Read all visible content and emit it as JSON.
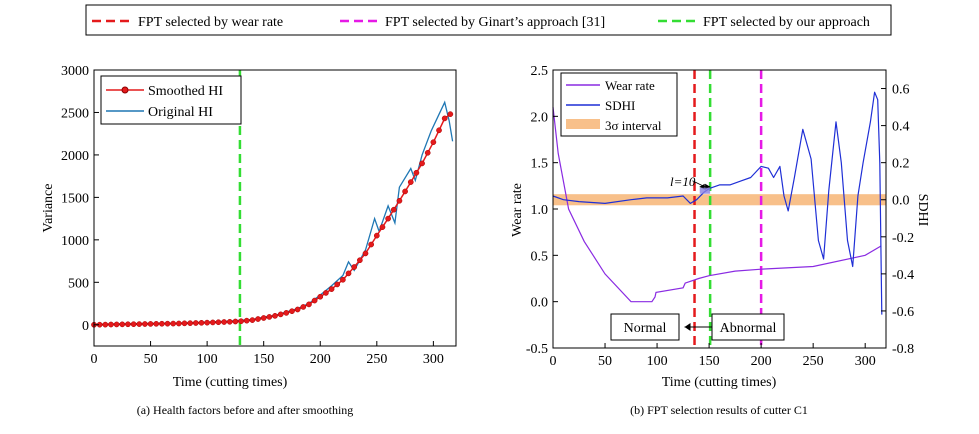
{
  "legend": {
    "wear_rate": "FPT selected by wear rate",
    "ginart": "FPT selected by Ginart’s approach [31]",
    "ours": "FPT selected by our approach"
  },
  "colors": {
    "red": "#e41a1c",
    "magenta": "#e619e6",
    "green": "#33dd33",
    "smoothed": "#e41a1c",
    "original": "#1f77b4",
    "wear": "#8a2be2",
    "sdhi": "#1f2fd6",
    "band": "#f8c08a"
  },
  "chart_data": [
    {
      "type": "line",
      "caption": "(a) Health factors before and after smoothing",
      "xlabel": "Time (cutting times)",
      "ylabel": "Variance",
      "xlim": [
        0,
        320
      ],
      "ylim": [
        -250,
        3000
      ],
      "xticks": [
        "0",
        "50",
        "100",
        "150",
        "200",
        "250",
        "300"
      ],
      "yticks": [
        "0",
        "500",
        "1000",
        "1500",
        "2000",
        "2500",
        "3000"
      ],
      "legend": [
        "Smoothed HI",
        "Original HI"
      ],
      "fpt_line_x": 129,
      "smoothed": {
        "name": "Smoothed HI",
        "x": [
          0,
          25,
          50,
          75,
          100,
          120,
          130,
          140,
          150,
          160,
          170,
          180,
          190,
          200,
          210,
          220,
          230,
          240,
          250,
          260,
          270,
          280,
          290,
          300,
          310,
          315
        ],
        "y": [
          0,
          5,
          10,
          15,
          25,
          35,
          42,
          55,
          80,
          105,
          140,
          180,
          240,
          330,
          420,
          530,
          680,
          840,
          1050,
          1250,
          1460,
          1680,
          1900,
          2150,
          2430,
          2480
        ]
      },
      "original": {
        "name": "Original HI",
        "x": [
          0,
          25,
          50,
          75,
          100,
          120,
          130,
          140,
          150,
          160,
          170,
          180,
          190,
          200,
          210,
          220,
          225,
          230,
          240,
          248,
          252,
          260,
          266,
          270,
          280,
          284,
          290,
          298,
          304,
          310,
          314,
          317
        ],
        "y": [
          5,
          12,
          16,
          20,
          32,
          42,
          55,
          62,
          90,
          110,
          150,
          190,
          250,
          350,
          460,
          580,
          740,
          640,
          880,
          1250,
          1100,
          1400,
          1200,
          1620,
          1840,
          1700,
          2000,
          2280,
          2450,
          2620,
          2400,
          2160
        ]
      }
    },
    {
      "type": "line",
      "caption": "(b) FPT selection results of cutter C1",
      "xlabel": "Time (cutting times)",
      "ylabel_left": "Wear rate",
      "ylabel_right": "SDHI",
      "xlim": [
        0,
        320
      ],
      "ylim_left": [
        -0.5,
        2.5
      ],
      "ylim_right": [
        -0.8,
        0.7
      ],
      "xticks": [
        "0",
        "50",
        "100",
        "150",
        "200",
        "250",
        "300"
      ],
      "yticks_left": [
        "-0.5",
        "0.0",
        "0.5",
        "1.0",
        "1.5",
        "2.0",
        "2.5"
      ],
      "yticks_right": [
        "-0.8",
        "-0.6",
        "-0.4",
        "-0.2",
        "0.0",
        "0.2",
        "0.4",
        "0.6"
      ],
      "legend": [
        "Wear rate",
        "SDHI",
        "3σ interval"
      ],
      "band_sdhi": [
        -0.03,
        0.03
      ],
      "fpt_wear_rate_x": 136,
      "fpt_ginart_x": 200,
      "fpt_ours_x": 151,
      "annotation_l": "l=10",
      "region_normal": "Normal",
      "region_abnormal": "Abnormal",
      "wear_rate": {
        "name": "Wear rate",
        "x": [
          0,
          5,
          15,
          30,
          50,
          75,
          95,
          98,
          99,
          125,
          127,
          140,
          150,
          175,
          200,
          250,
          300,
          315
        ],
        "y": [
          2.1,
          1.6,
          1.0,
          0.65,
          0.3,
          0.0,
          0.0,
          0.05,
          0.1,
          0.15,
          0.2,
          0.25,
          0.28,
          0.33,
          0.35,
          0.38,
          0.5,
          0.6
        ]
      },
      "sdhi": {
        "name": "SDHI",
        "x": [
          0,
          10,
          25,
          50,
          75,
          90,
          100,
          110,
          125,
          132,
          138,
          145,
          150,
          160,
          170,
          180,
          190,
          200,
          207,
          212,
          218,
          222,
          226,
          232,
          240,
          248,
          255,
          260,
          265,
          272,
          277,
          283,
          288,
          293,
          298,
          305,
          309,
          312,
          314,
          316
        ],
        "y": [
          0.02,
          0.0,
          -0.01,
          -0.02,
          0.0,
          0.01,
          0.01,
          0.01,
          0.02,
          -0.02,
          0.0,
          0.04,
          0.06,
          0.08,
          0.08,
          0.1,
          0.12,
          0.18,
          0.17,
          0.12,
          0.18,
          0.02,
          -0.06,
          0.12,
          0.38,
          0.22,
          -0.22,
          -0.32,
          0.05,
          0.42,
          0.2,
          -0.22,
          -0.36,
          0.02,
          0.2,
          0.42,
          0.58,
          0.54,
          0.2,
          -0.62
        ]
      }
    }
  ]
}
